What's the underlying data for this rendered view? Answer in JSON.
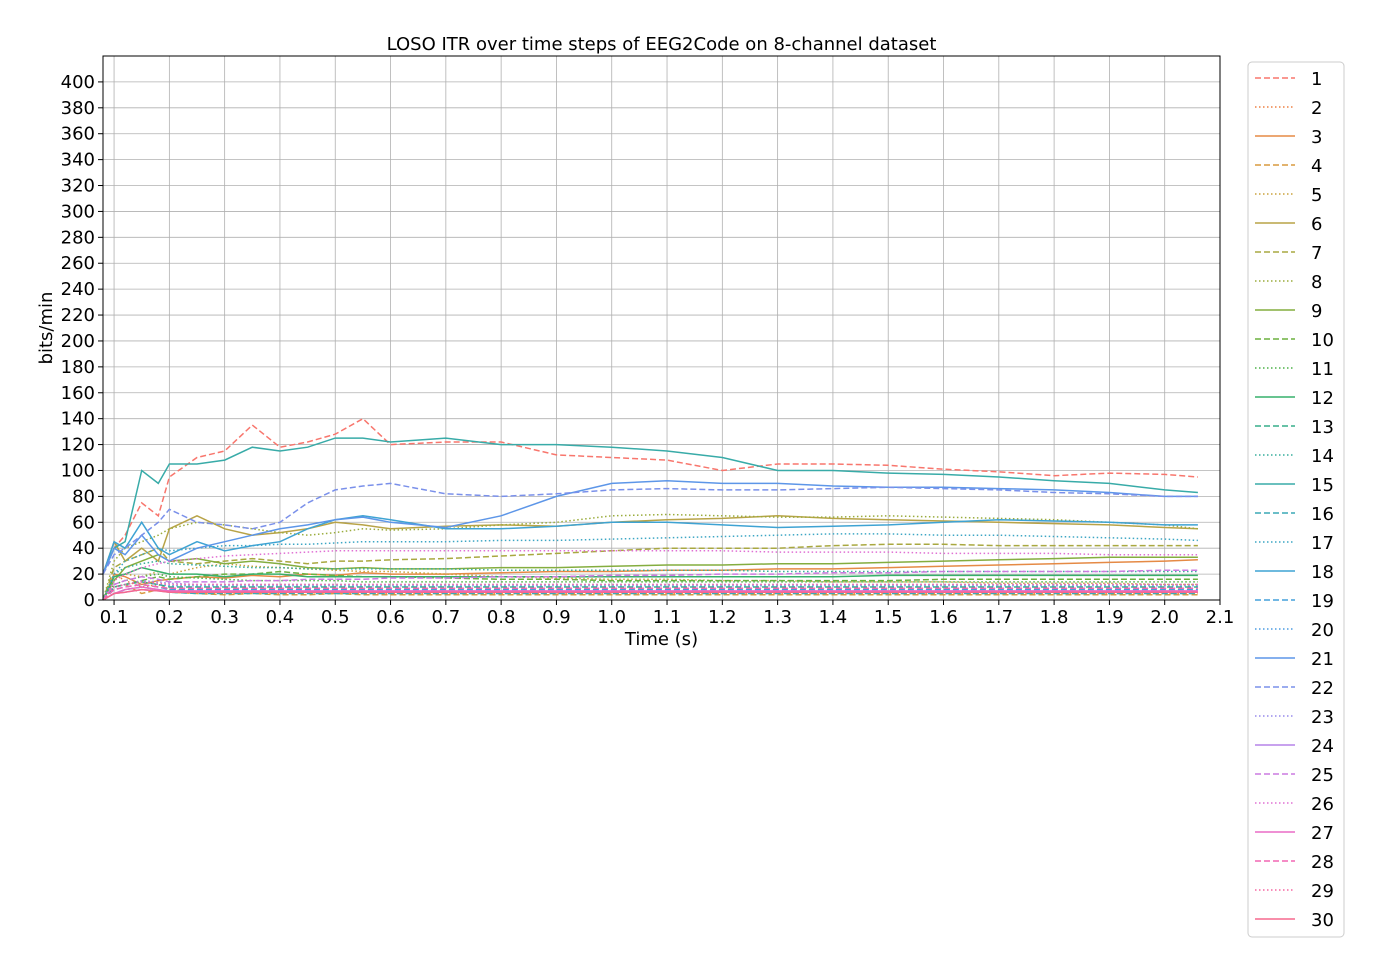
{
  "chart_data": {
    "type": "line",
    "title": "LOSO ITR over time steps of EEG2Code on 8-channel dataset",
    "xlabel": "Time (s)",
    "ylabel": "bits/min",
    "xlim": [
      0.08,
      2.1
    ],
    "ylim": [
      0,
      420
    ],
    "grid": true,
    "legend_position": "right-outside",
    "xticks": [
      0.1,
      0.2,
      0.3,
      0.4,
      0.5,
      0.6,
      0.7,
      0.8,
      0.9,
      1.0,
      1.1,
      1.2,
      1.3,
      1.4,
      1.5,
      1.6,
      1.7,
      1.8,
      1.9,
      2.0,
      2.1
    ],
    "xtick_labels": [
      "0.1",
      "0.2",
      "0.3",
      "0.4",
      "0.5",
      "0.6",
      "0.7",
      "0.8",
      "0.9",
      "1.0",
      "1.1",
      "1.2",
      "1.3",
      "1.4",
      "1.5",
      "1.6",
      "1.7",
      "1.8",
      "1.9",
      "2.0",
      "2.1"
    ],
    "yticks": [
      0,
      20,
      40,
      60,
      80,
      100,
      120,
      140,
      160,
      180,
      200,
      220,
      240,
      260,
      280,
      300,
      320,
      340,
      360,
      380,
      400
    ],
    "ytick_labels": [
      "0",
      "20",
      "40",
      "60",
      "80",
      "100",
      "120",
      "140",
      "160",
      "180",
      "200",
      "220",
      "240",
      "260",
      "280",
      "300",
      "320",
      "340",
      "360",
      "380",
      "400"
    ],
    "x": [
      0.08,
      0.1,
      0.12,
      0.15,
      0.18,
      0.2,
      0.25,
      0.3,
      0.35,
      0.4,
      0.45,
      0.5,
      0.55,
      0.6,
      0.7,
      0.8,
      0.9,
      1.0,
      1.1,
      1.2,
      1.3,
      1.4,
      1.5,
      1.6,
      1.7,
      1.8,
      1.9,
      2.0,
      2.06
    ],
    "series": [
      {
        "name": "1",
        "color": "#f8766d",
        "dash": "dashed",
        "values": [
          20,
          40,
          50,
          75,
          65,
          95,
          110,
          115,
          135,
          118,
          122,
          128,
          140,
          120,
          122,
          122,
          112,
          110,
          108,
          100,
          105,
          105,
          104,
          101,
          99,
          96,
          98,
          97,
          95
        ]
      },
      {
        "name": "2",
        "color": "#ee8043",
        "dash": "dotted",
        "values": [
          0,
          20,
          15,
          10,
          12,
          8,
          6,
          5,
          6,
          5,
          6,
          5,
          5,
          5,
          5,
          5,
          5,
          5,
          5,
          5,
          5,
          5,
          5,
          5,
          5,
          5,
          5,
          5,
          5
        ]
      },
      {
        "name": "3",
        "color": "#e58a45",
        "dash": "solid",
        "values": [
          0,
          20,
          18,
          12,
          15,
          16,
          18,
          17,
          19,
          18,
          20,
          19,
          21,
          20,
          20,
          21,
          22,
          22,
          23,
          23,
          24,
          24,
          25,
          26,
          27,
          28,
          29,
          30,
          31
        ]
      },
      {
        "name": "4",
        "color": "#d89a3e",
        "dash": "dashed",
        "values": [
          0,
          10,
          12,
          5,
          8,
          6,
          5,
          4,
          5,
          4,
          4,
          5,
          4,
          4,
          4,
          4,
          4,
          4,
          4,
          4,
          4,
          4,
          4,
          4,
          4,
          4,
          4,
          4,
          4
        ]
      },
      {
        "name": "5",
        "color": "#caa23b",
        "dash": "dotted",
        "values": [
          0,
          15,
          20,
          18,
          22,
          20,
          25,
          28,
          26,
          25,
          24,
          23,
          22,
          22,
          20,
          18,
          17,
          16,
          16,
          15,
          15,
          14,
          14,
          14,
          13,
          13,
          13,
          12,
          12
        ]
      },
      {
        "name": "6",
        "color": "#b8a347",
        "dash": "solid",
        "values": [
          20,
          45,
          30,
          40,
          30,
          55,
          65,
          55,
          50,
          52,
          55,
          60,
          58,
          55,
          57,
          58,
          57,
          60,
          62,
          63,
          65,
          63,
          62,
          61,
          60,
          59,
          58,
          56,
          55
        ]
      },
      {
        "name": "7",
        "color": "#a9a840",
        "dash": "dashed",
        "values": [
          0,
          25,
          30,
          35,
          40,
          30,
          28,
          30,
          32,
          30,
          28,
          30,
          30,
          31,
          32,
          34,
          36,
          38,
          40,
          40,
          40,
          42,
          43,
          43,
          42,
          42,
          42,
          42,
          42
        ]
      },
      {
        "name": "8",
        "color": "#9aac3c",
        "dash": "dotted",
        "values": [
          0,
          30,
          40,
          45,
          50,
          55,
          60,
          58,
          55,
          52,
          50,
          52,
          55,
          54,
          55,
          58,
          60,
          65,
          66,
          65,
          64,
          64,
          65,
          64,
          63,
          62,
          60,
          58,
          55
        ]
      },
      {
        "name": "9",
        "color": "#84ad3f",
        "dash": "solid",
        "values": [
          0,
          15,
          25,
          30,
          35,
          30,
          32,
          28,
          30,
          28,
          25,
          24,
          25,
          24,
          24,
          25,
          25,
          26,
          27,
          27,
          28,
          28,
          29,
          30,
          31,
          32,
          33,
          33,
          33
        ]
      },
      {
        "name": "10",
        "color": "#6cb03f",
        "dash": "dashed",
        "values": [
          0,
          10,
          12,
          15,
          18,
          16,
          18,
          20,
          20,
          22,
          20,
          19,
          18,
          18,
          17,
          16,
          16,
          15,
          15,
          15,
          15,
          15,
          15,
          16,
          16,
          16,
          16,
          16,
          16
        ]
      },
      {
        "name": "11",
        "color": "#4cb248",
        "dash": "dotted",
        "values": [
          0,
          12,
          15,
          18,
          20,
          18,
          17,
          16,
          15,
          15,
          15,
          15,
          14,
          14,
          14,
          14,
          14,
          14,
          14,
          14,
          14,
          14,
          14,
          14,
          14,
          14,
          14,
          14,
          14
        ]
      },
      {
        "name": "12",
        "color": "#37b06b",
        "dash": "solid",
        "values": [
          0,
          18,
          20,
          25,
          22,
          20,
          20,
          18,
          20,
          20,
          18,
          18,
          18,
          18,
          18,
          18,
          18,
          18,
          18,
          18,
          18,
          18,
          19,
          19,
          19,
          19,
          19,
          19,
          19
        ]
      },
      {
        "name": "13",
        "color": "#36ae8a",
        "dash": "dashed",
        "values": [
          0,
          10,
          12,
          14,
          12,
          10,
          10,
          10,
          10,
          10,
          10,
          10,
          10,
          10,
          10,
          10,
          10,
          10,
          10,
          10,
          10,
          10,
          10,
          10,
          10,
          10,
          10,
          10,
          10
        ]
      },
      {
        "name": "14",
        "color": "#36ad9b",
        "dash": "dotted",
        "values": [
          0,
          20,
          25,
          28,
          30,
          28,
          27,
          26,
          25,
          25,
          24,
          24,
          24,
          24,
          24,
          23,
          23,
          23,
          23,
          23,
          22,
          22,
          22,
          22,
          22,
          22,
          22,
          22,
          22
        ]
      },
      {
        "name": "15",
        "color": "#38aba8",
        "dash": "solid",
        "values": [
          20,
          40,
          45,
          100,
          90,
          105,
          105,
          108,
          118,
          115,
          118,
          125,
          125,
          122,
          125,
          120,
          120,
          118,
          115,
          110,
          100,
          100,
          98,
          97,
          95,
          92,
          90,
          85,
          83
        ]
      },
      {
        "name": "16",
        "color": "#3aa9b6",
        "dash": "dashed",
        "values": [
          0,
          5,
          8,
          10,
          8,
          6,
          5,
          5,
          5,
          5,
          5,
          5,
          5,
          5,
          5,
          5,
          5,
          5,
          5,
          5,
          5,
          5,
          5,
          5,
          5,
          5,
          5,
          5,
          5
        ]
      },
      {
        "name": "17",
        "color": "#3ca6c4",
        "dash": "dotted",
        "values": [
          0,
          20,
          30,
          35,
          40,
          38,
          40,
          42,
          42,
          43,
          43,
          44,
          45,
          45,
          45,
          46,
          46,
          47,
          48,
          49,
          50,
          51,
          51,
          50,
          50,
          49,
          48,
          47,
          46
        ]
      },
      {
        "name": "18",
        "color": "#3ea3d3",
        "dash": "solid",
        "values": [
          20,
          45,
          40,
          60,
          40,
          35,
          45,
          38,
          42,
          45,
          55,
          62,
          65,
          62,
          55,
          55,
          57,
          60,
          60,
          58,
          56,
          57,
          58,
          60,
          62,
          61,
          60,
          58,
          58
        ]
      },
      {
        "name": "19",
        "color": "#44a0dc",
        "dash": "dashed",
        "values": [
          0,
          8,
          10,
          12,
          10,
          8,
          8,
          8,
          8,
          8,
          8,
          8,
          8,
          8,
          8,
          8,
          8,
          8,
          8,
          8,
          8,
          8,
          8,
          8,
          8,
          8,
          8,
          8,
          8
        ]
      },
      {
        "name": "20",
        "color": "#4c9be2",
        "dash": "dotted",
        "values": [
          0,
          10,
          12,
          14,
          12,
          11,
          11,
          11,
          11,
          11,
          11,
          11,
          11,
          11,
          11,
          11,
          11,
          11,
          11,
          11,
          11,
          11,
          11,
          11,
          11,
          11,
          11,
          11,
          11
        ]
      },
      {
        "name": "21",
        "color": "#5d96e8",
        "dash": "solid",
        "values": [
          20,
          40,
          35,
          50,
          35,
          30,
          40,
          45,
          50,
          55,
          58,
          62,
          64,
          60,
          56,
          65,
          80,
          90,
          92,
          90,
          90,
          88,
          87,
          87,
          86,
          85,
          83,
          80,
          80
        ]
      },
      {
        "name": "22",
        "color": "#7a90ea",
        "dash": "dashed",
        "values": [
          20,
          35,
          40,
          50,
          60,
          70,
          60,
          58,
          55,
          60,
          75,
          85,
          88,
          90,
          82,
          80,
          82,
          85,
          86,
          85,
          85,
          86,
          87,
          86,
          85,
          83,
          82,
          80,
          80
        ]
      },
      {
        "name": "23",
        "color": "#978aec",
        "dash": "dotted",
        "values": [
          0,
          10,
          12,
          15,
          14,
          13,
          12,
          12,
          12,
          12,
          12,
          12,
          12,
          12,
          12,
          12,
          12,
          12,
          12,
          12,
          12,
          12,
          12,
          12,
          12,
          12,
          12,
          12,
          12
        ]
      },
      {
        "name": "24",
        "color": "#b583e8",
        "dash": "solid",
        "values": [
          0,
          5,
          6,
          8,
          7,
          6,
          6,
          6,
          6,
          6,
          6,
          6,
          6,
          6,
          6,
          6,
          6,
          6,
          6,
          6,
          6,
          6,
          6,
          6,
          6,
          6,
          6,
          6,
          6
        ]
      },
      {
        "name": "25",
        "color": "#cc7ae0",
        "dash": "dashed",
        "values": [
          0,
          12,
          15,
          18,
          16,
          14,
          14,
          14,
          15,
          15,
          16,
          16,
          16,
          17,
          17,
          18,
          18,
          19,
          19,
          20,
          20,
          21,
          21,
          22,
          22,
          22,
          22,
          23,
          23
        ]
      },
      {
        "name": "26",
        "color": "#e070d4",
        "dash": "dotted",
        "values": [
          0,
          15,
          20,
          25,
          28,
          30,
          32,
          34,
          35,
          36,
          37,
          38,
          38,
          38,
          38,
          38,
          38,
          38,
          38,
          38,
          37,
          37,
          37,
          36,
          36,
          36,
          35,
          35,
          35
        ]
      },
      {
        "name": "27",
        "color": "#ea6bc5",
        "dash": "solid",
        "values": [
          0,
          5,
          8,
          10,
          8,
          7,
          7,
          7,
          7,
          7,
          7,
          7,
          7,
          7,
          7,
          7,
          7,
          7,
          7,
          7,
          7,
          7,
          7,
          7,
          7,
          7,
          7,
          7,
          7
        ]
      },
      {
        "name": "28",
        "color": "#f266b4",
        "dash": "dashed",
        "values": [
          0,
          8,
          10,
          12,
          10,
          9,
          9,
          9,
          9,
          9,
          9,
          9,
          9,
          9,
          9,
          9,
          9,
          9,
          9,
          9,
          9,
          9,
          9,
          9,
          9,
          9,
          9,
          9,
          9
        ]
      },
      {
        "name": "29",
        "color": "#f566a2",
        "dash": "dotted",
        "values": [
          0,
          10,
          12,
          14,
          13,
          12,
          12,
          12,
          12,
          12,
          12,
          12,
          12,
          12,
          12,
          12,
          12,
          12,
          12,
          12,
          12,
          12,
          12,
          12,
          12,
          12,
          12,
          12,
          12
        ]
      },
      {
        "name": "30",
        "color": "#f5688e",
        "dash": "solid",
        "values": [
          0,
          5,
          6,
          8,
          7,
          6,
          6,
          6,
          6,
          6,
          6,
          6,
          6,
          6,
          6,
          6,
          6,
          6,
          6,
          6,
          6,
          6,
          6,
          6,
          6,
          6,
          6,
          6,
          6
        ]
      }
    ]
  }
}
